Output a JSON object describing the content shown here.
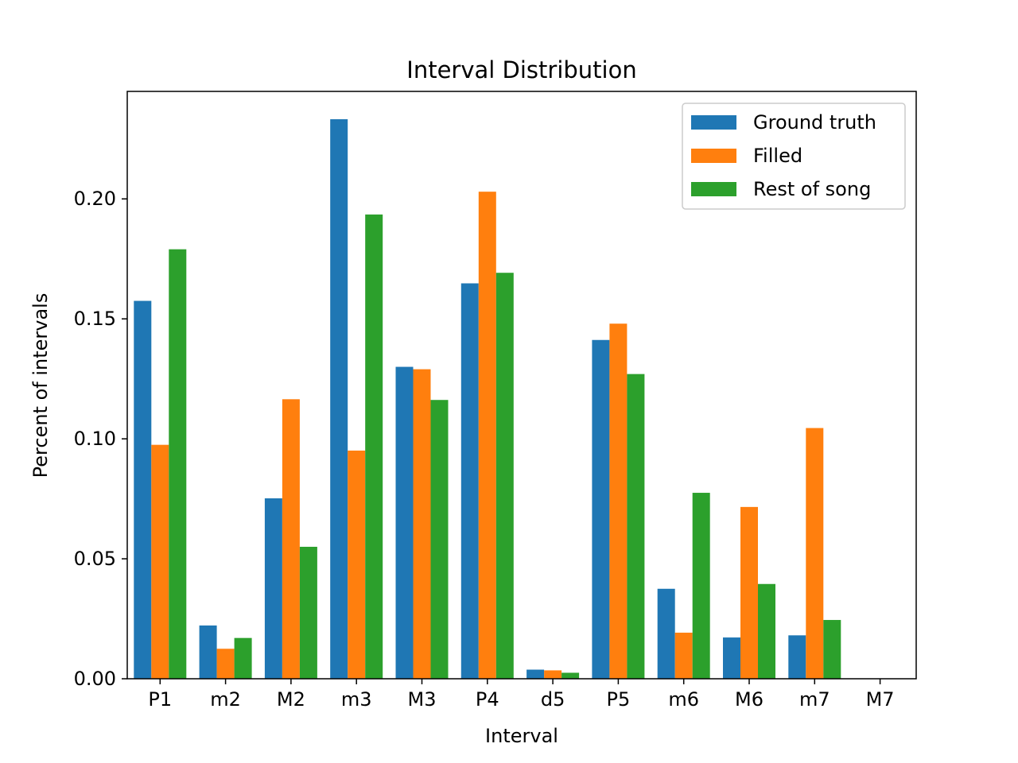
{
  "chart_data": {
    "type": "bar",
    "title": "Interval Distribution",
    "xlabel": "Interval",
    "ylabel": "Percent of intervals",
    "categories": [
      "P1",
      "m2",
      "M2",
      "m3",
      "M3",
      "P4",
      "d5",
      "P5",
      "m6",
      "M6",
      "m7",
      "M7"
    ],
    "series": [
      {
        "name": "Ground truth",
        "color": "#1f77b4",
        "values": [
          0.1575,
          0.0222,
          0.0752,
          0.2332,
          0.13,
          0.1648,
          0.0038,
          0.1412,
          0.0375,
          0.0172,
          0.0181,
          0.0
        ]
      },
      {
        "name": "Filled",
        "color": "#ff7f0e",
        "values": [
          0.0975,
          0.0125,
          0.1165,
          0.0951,
          0.129,
          0.203,
          0.0035,
          0.148,
          0.0192,
          0.0716,
          0.1045,
          0.0
        ]
      },
      {
        "name": "Rest of song",
        "color": "#2ca02c",
        "values": [
          0.179,
          0.017,
          0.055,
          0.1935,
          0.1162,
          0.1692,
          0.0025,
          0.127,
          0.0775,
          0.0395,
          0.0245,
          0.0
        ]
      }
    ],
    "yticks": [
      "0.00",
      "0.05",
      "0.10",
      "0.15",
      "0.20"
    ],
    "ylim": [
      0,
      0.2448
    ],
    "grid": false,
    "legend": "top-right"
  }
}
